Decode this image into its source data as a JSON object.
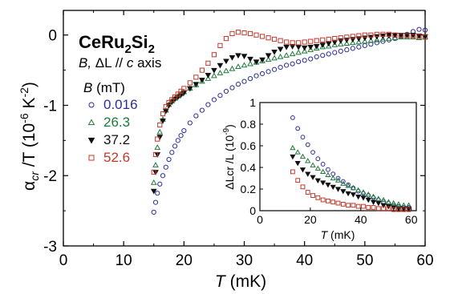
{
  "chart_data": [
    {
      "type": "scatter",
      "xlabel_var": "T",
      "xlabel_unit": "(mK)",
      "ylabel_var": "α",
      "ylabel_sub": "cr",
      "ylabel_rest": " /T (10",
      "ylabel_exp1": "-6",
      "ylabel_mid": " K",
      "ylabel_exp2": "-2",
      "ylabel_end": ")",
      "xlim": [
        0,
        60
      ],
      "ylim": [
        -3,
        0.35
      ],
      "x_ticks": [
        "0",
        "10",
        "20",
        "30",
        "40",
        "50",
        "60"
      ],
      "y_ticks": [
        "-3",
        "-2",
        "-1",
        "0"
      ],
      "title_main": "CeRu",
      "title_sub1": "2",
      "title_mid": "Si",
      "title_sub2": "2",
      "condition_B": "B,",
      "condition_dL": " ΔL // ",
      "condition_c": "c",
      "condition_axis": " axis",
      "legend_title_B": "B",
      "legend_title_unit": " (mT)",
      "legend_position": "left",
      "series": [
        {
          "name": "0.016",
          "color": "#2d2d9a",
          "marker": "circle",
          "x": [
            15.0,
            15.3,
            15.6,
            16.0,
            16.5,
            17.0,
            17.5,
            18.0,
            18.5,
            19.0,
            19.5,
            20.0,
            21.0,
            22.0,
            23.0,
            24.0,
            25.0,
            26.0,
            27.0,
            28.0,
            29.0,
            30.0,
            31.0,
            32.0,
            33.0,
            34.0,
            35.0,
            36.0,
            37.0,
            38.0,
            39.0,
            40.0,
            41.0,
            42.0,
            43.0,
            44.0,
            45.0,
            46.0,
            47.0,
            48.0,
            49.0,
            50.0,
            51.0,
            52.0,
            53.0,
            54.0,
            55.0,
            56.0,
            57.0,
            58.0,
            59.0,
            60.0
          ],
          "y": [
            -2.52,
            -2.38,
            -2.25,
            -2.12,
            -2.0,
            -1.88,
            -1.77,
            -1.67,
            -1.58,
            -1.5,
            -1.43,
            -1.36,
            -1.25,
            -1.15,
            -1.07,
            -0.99,
            -0.92,
            -0.86,
            -0.8,
            -0.75,
            -0.7,
            -0.66,
            -0.62,
            -0.58,
            -0.55,
            -0.52,
            -0.49,
            -0.46,
            -0.43,
            -0.41,
            -0.38,
            -0.36,
            -0.34,
            -0.31,
            -0.29,
            -0.27,
            -0.25,
            -0.23,
            -0.21,
            -0.19,
            -0.17,
            -0.15,
            -0.13,
            -0.11,
            -0.09,
            -0.07,
            -0.05,
            -0.02,
            0.01,
            0.05,
            0.08,
            0.07
          ]
        },
        {
          "name": "26.3",
          "color": "#1e7a3a",
          "marker": "triangle-up",
          "x": [
            15.0,
            15.3,
            15.6,
            16.0,
            16.5,
            17.0,
            17.5,
            18.0,
            18.5,
            19.0,
            19.5,
            20.0,
            21.0,
            22.0,
            23.0,
            24.0,
            25.0,
            26.0,
            27.0,
            28.0,
            29.0,
            30.0,
            31.0,
            32.0,
            33.0,
            34.0,
            35.0,
            36.0,
            37.0,
            38.0,
            39.0,
            40.0,
            41.0,
            42.0,
            43.0,
            44.0,
            45.0,
            46.0,
            47.0,
            48.0,
            49.0,
            50.0,
            51.0,
            52.0,
            53.0,
            54.0,
            55.0,
            56.0,
            57.0,
            58.0,
            59.0,
            60.0
          ],
          "y": [
            -2.1,
            -1.85,
            -1.6,
            -1.38,
            -1.2,
            -1.07,
            -0.99,
            -0.94,
            -0.9,
            -0.87,
            -0.84,
            -0.81,
            -0.76,
            -0.71,
            -0.66,
            -0.62,
            -0.58,
            -0.54,
            -0.51,
            -0.48,
            -0.45,
            -0.43,
            -0.41,
            -0.39,
            -0.37,
            -0.35,
            -0.33,
            -0.31,
            -0.29,
            -0.27,
            -0.25,
            -0.23,
            -0.21,
            -0.19,
            -0.17,
            -0.16,
            -0.14,
            -0.13,
            -0.12,
            -0.11,
            -0.1,
            -0.09,
            -0.08,
            -0.07,
            -0.06,
            -0.05,
            -0.04,
            -0.03,
            -0.03,
            -0.03,
            -0.04,
            -0.03
          ]
        },
        {
          "name": "37.2",
          "color": "#111111",
          "marker": "triangle-down",
          "x": [
            15.0,
            15.3,
            15.6,
            16.0,
            16.5,
            17.0,
            17.5,
            18.0,
            18.5,
            19.0,
            19.5,
            20.0,
            21.0,
            22.0,
            23.0,
            24.0,
            25.0,
            26.0,
            27.0,
            28.0,
            29.0,
            30.0,
            31.0,
            32.0,
            33.0,
            34.0,
            35.0,
            36.0,
            37.0,
            38.0,
            39.0,
            40.0,
            41.0,
            42.0,
            43.0,
            44.0,
            45.0,
            46.0,
            47.0,
            48.0,
            49.0,
            50.0,
            51.0,
            52.0,
            53.0,
            54.0,
            55.0,
            56.0,
            57.0,
            58.0,
            59.0,
            60.0
          ],
          "y": [
            -2.22,
            -1.95,
            -1.7,
            -1.45,
            -1.22,
            -1.08,
            -1.0,
            -0.95,
            -0.91,
            -0.88,
            -0.85,
            -0.82,
            -0.76,
            -0.7,
            -0.64,
            -0.57,
            -0.5,
            -0.43,
            -0.37,
            -0.32,
            -0.29,
            -0.3,
            -0.34,
            -0.38,
            -0.35,
            -0.29,
            -0.24,
            -0.2,
            -0.17,
            -0.16,
            -0.17,
            -0.18,
            -0.17,
            -0.16,
            -0.14,
            -0.12,
            -0.1,
            -0.08,
            -0.07,
            -0.06,
            -0.05,
            -0.04,
            -0.03,
            -0.02,
            -0.01,
            0.0,
            0.0,
            0.0,
            0.0,
            0.0,
            -0.01,
            -0.02
          ]
        },
        {
          "name": "52.6",
          "color": "#c0392b",
          "marker": "square",
          "x": [
            15.0,
            15.3,
            15.6,
            16.0,
            16.5,
            17.0,
            17.5,
            18.0,
            18.5,
            19.0,
            19.5,
            20.0,
            21.0,
            22.0,
            23.0,
            24.0,
            25.0,
            26.0,
            27.0,
            28.0,
            29.0,
            30.0,
            31.0,
            32.0,
            33.0,
            34.0,
            35.0,
            36.0,
            37.0,
            38.0,
            39.0,
            40.0,
            41.0,
            42.0,
            43.0,
            44.0,
            45.0,
            46.0,
            47.0,
            48.0,
            49.0,
            50.0,
            51.0,
            52.0,
            53.0,
            54.0,
            55.0,
            56.0,
            57.0,
            58.0,
            59.0,
            60.0
          ],
          "y": [
            -1.95,
            -1.7,
            -1.48,
            -1.28,
            -1.12,
            -1.02,
            -0.96,
            -0.92,
            -0.88,
            -0.84,
            -0.8,
            -0.76,
            -0.68,
            -0.6,
            -0.5,
            -0.4,
            -0.28,
            -0.15,
            -0.05,
            0.02,
            0.04,
            0.03,
            0.02,
            0.0,
            -0.02,
            -0.04,
            -0.06,
            -0.08,
            -0.1,
            -0.11,
            -0.11,
            -0.1,
            -0.09,
            -0.08,
            -0.07,
            -0.06,
            -0.05,
            -0.04,
            -0.03,
            -0.02,
            -0.01,
            0.0,
            0.0,
            0.01,
            0.01,
            0.01,
            0.0,
            -0.01,
            -0.01,
            -0.02,
            -0.02,
            -0.03
          ]
        }
      ]
    },
    {
      "type": "scatter",
      "inset": true,
      "xlabel_var": "T",
      "xlabel_unit": " (mK)",
      "ylabel_main": "ΔLcr /L (10",
      "ylabel_exp": "-9",
      "ylabel_end": ")",
      "xlim": [
        0,
        62
      ],
      "ylim": [
        0,
        1.0
      ],
      "x_ticks": [
        "0",
        "20",
        "40",
        "60"
      ],
      "y_ticks": [
        "0",
        "0.2",
        "0.4",
        "0.6",
        "0.8",
        "1"
      ],
      "series": [
        {
          "name": "0.016",
          "color": "#2d2d9a",
          "marker": "circle",
          "x": [
            13,
            15,
            17,
            19,
            21,
            23,
            25,
            27,
            29,
            31,
            33,
            35,
            37,
            39,
            41,
            43,
            45,
            47,
            49,
            51,
            53,
            55,
            57,
            59
          ],
          "y": [
            0.86,
            0.76,
            0.68,
            0.61,
            0.54,
            0.48,
            0.43,
            0.38,
            0.34,
            0.3,
            0.27,
            0.24,
            0.21,
            0.18,
            0.16,
            0.14,
            0.12,
            0.1,
            0.08,
            0.07,
            0.05,
            0.04,
            0.03,
            0.03
          ]
        },
        {
          "name": "26.3",
          "color": "#1e7a3a",
          "marker": "triangle-up",
          "x": [
            13,
            15,
            17,
            19,
            21,
            23,
            25,
            27,
            29,
            31,
            33,
            35,
            37,
            39,
            41,
            43,
            45,
            47,
            49,
            51,
            53,
            55,
            57,
            59
          ],
          "y": [
            0.58,
            0.54,
            0.5,
            0.46,
            0.42,
            0.39,
            0.36,
            0.33,
            0.3,
            0.28,
            0.25,
            0.23,
            0.21,
            0.19,
            0.17,
            0.15,
            0.13,
            0.11,
            0.1,
            0.08,
            0.07,
            0.06,
            0.05,
            0.05
          ]
        },
        {
          "name": "37.2",
          "color": "#111111",
          "marker": "triangle-down",
          "x": [
            13,
            15,
            17,
            19,
            21,
            23,
            25,
            27,
            29,
            31,
            33,
            35,
            37,
            39,
            41,
            43,
            45,
            47,
            49,
            51,
            53,
            55,
            57,
            59
          ],
          "y": [
            0.5,
            0.44,
            0.38,
            0.34,
            0.31,
            0.28,
            0.26,
            0.24,
            0.22,
            0.2,
            0.18,
            0.16,
            0.15,
            0.13,
            0.12,
            0.1,
            0.08,
            0.07,
            0.05,
            0.04,
            0.03,
            0.02,
            0.02,
            0.02
          ]
        },
        {
          "name": "52.6",
          "color": "#c0392b",
          "marker": "square",
          "x": [
            13,
            15,
            17,
            19,
            21,
            23,
            25,
            27,
            29,
            31,
            33,
            35,
            37,
            39,
            41,
            43,
            45,
            47,
            49,
            51,
            53,
            55,
            57,
            59
          ],
          "y": [
            0.36,
            0.28,
            0.22,
            0.17,
            0.14,
            0.12,
            0.1,
            0.09,
            0.08,
            0.07,
            0.06,
            0.05,
            0.05,
            0.04,
            0.04,
            0.03,
            0.03,
            0.02,
            0.02,
            0.02,
            0.01,
            0.01,
            0.01,
            0.01
          ]
        }
      ]
    }
  ]
}
